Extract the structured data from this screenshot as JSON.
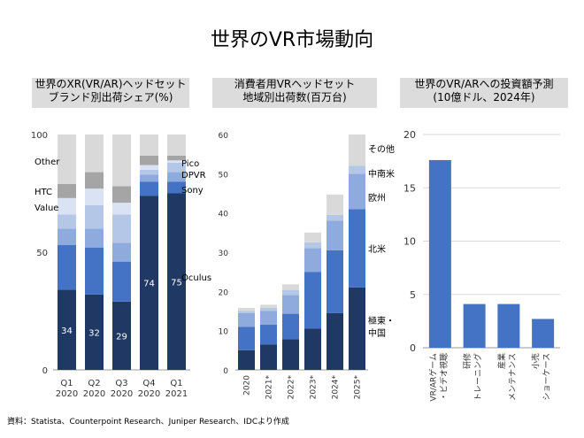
{
  "title": "世界のVR市場動向",
  "source": "資料：Statista、Counterpoint Research、Juniper Research、IDCより作成",
  "panels": {
    "p1": {
      "title_line1": "世界のXR(VR/AR)ヘッドセット",
      "title_line2": "ブランド別出荷シェア(%)"
    },
    "p2": {
      "title_line1": "消費者用VRヘッドセット",
      "title_line2": "地域別出荷数(百万台)"
    },
    "p3": {
      "title_line1": "世界のVR/ARへの投資額予測",
      "title_line2": "(10億ドル、2024年)"
    }
  },
  "chart_data": [
    {
      "type": "bar",
      "stacked": true,
      "title": "世界のXR(VR/AR)ヘッドセット ブランド別出荷シェア(%)",
      "categories": [
        [
          "Q1",
          "2020"
        ],
        [
          "Q2",
          "2020"
        ],
        [
          "Q3",
          "2020"
        ],
        [
          "Q4",
          "2020"
        ],
        [
          "Q1",
          "2021"
        ]
      ],
      "ylim": [
        0,
        100
      ],
      "yticks": [
        0,
        50,
        100
      ],
      "series": [
        {
          "name": "Oculus",
          "color": "#1f3864",
          "values": [
            34,
            32,
            29,
            74,
            75
          ],
          "show_labels": true
        },
        {
          "name": "Sony",
          "color": "#4472c4",
          "values": [
            19,
            20,
            17,
            6,
            5
          ]
        },
        {
          "name": "DPVR",
          "color": "#8faadc",
          "values": [
            7,
            8,
            8,
            3,
            4
          ]
        },
        {
          "name": "Pico",
          "color": "#b4c7e7",
          "values": [
            6,
            10,
            12,
            2,
            4
          ]
        },
        {
          "name": "Value",
          "color": "#dae3f3",
          "values": [
            7,
            7,
            5,
            2,
            1
          ]
        },
        {
          "name": "HTC",
          "color": "#a5a5a5",
          "values": [
            6,
            7,
            7,
            4,
            2
          ]
        },
        {
          "name": "Other",
          "color": "#d9d9d9",
          "values": [
            21,
            16,
            22,
            9,
            9
          ]
        }
      ],
      "legend": [
        "Other",
        "HTC",
        "Value",
        "Pico",
        "DPVR",
        "Sony",
        "Oculus"
      ]
    },
    {
      "type": "bar",
      "stacked": true,
      "title": "消費者用VRヘッドセット 地域別出荷数(百万台)",
      "categories": [
        "2020",
        "2021*",
        "2022*",
        "2023*",
        "2024*",
        "2025*"
      ],
      "ylim": [
        0,
        60
      ],
      "yticks": [
        0,
        10,
        20,
        30,
        40,
        50,
        60
      ],
      "series": [
        {
          "name": "極東・中国",
          "color": "#1f3864",
          "values": [
            5,
            6.5,
            7.8,
            10.5,
            14.5,
            21
          ]
        },
        {
          "name": "北米",
          "color": "#4472c4",
          "values": [
            6,
            5,
            6.5,
            14.5,
            16,
            20
          ]
        },
        {
          "name": "欧州",
          "color": "#8faadc",
          "values": [
            3.5,
            3.5,
            4.8,
            6,
            7.5,
            9
          ]
        },
        {
          "name": "中南米",
          "color": "#b4c7e7",
          "values": [
            0.5,
            0.8,
            1.2,
            1.5,
            1.5,
            2
          ]
        },
        {
          "name": "その他",
          "color": "#d9d9d9",
          "values": [
            0.8,
            0.8,
            1.5,
            2.5,
            5.2,
            8
          ]
        }
      ],
      "legend": [
        "その他",
        "中南米",
        "欧州",
        "北米",
        "極東・中国"
      ]
    },
    {
      "type": "bar",
      "title": "世界のVR/ARへの投資額予測 (10億ドル、2024年)",
      "categories": [
        [
          "VR/ARゲーム",
          "・ビデオ視聴"
        ],
        [
          "研修",
          "トレーニング"
        ],
        [
          "産業",
          "メンテナンス"
        ],
        [
          "小売",
          "ショーケース"
        ]
      ],
      "ylim": [
        0,
        20
      ],
      "yticks": [
        0,
        5,
        10,
        15,
        20
      ],
      "series": [
        {
          "name": "",
          "color": "#4472c4",
          "values": [
            17.6,
            4.1,
            4.1,
            2.7
          ]
        }
      ]
    }
  ]
}
